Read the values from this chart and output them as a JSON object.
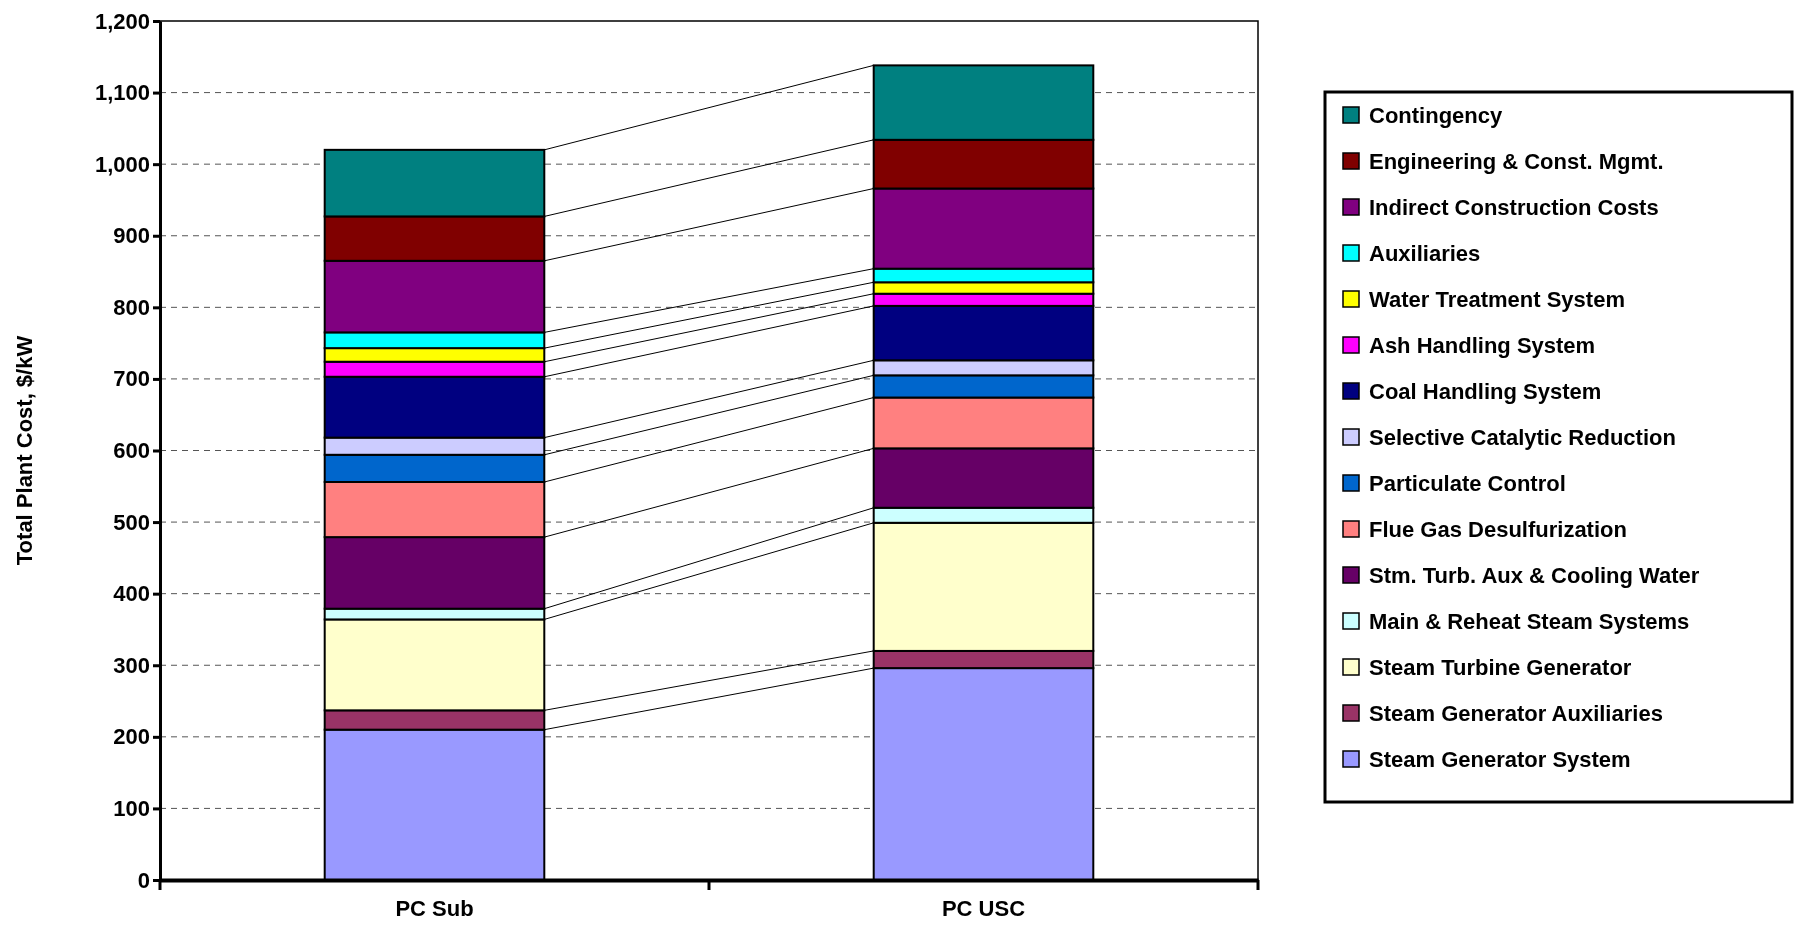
{
  "chart_data": {
    "type": "bar",
    "stacked": true,
    "ylabel": "Total Plant Cost, $/kW",
    "categories": [
      "PC Sub",
      "PC USC"
    ],
    "ylim": [
      0,
      1200
    ],
    "yticks": [
      0,
      100,
      200,
      300,
      400,
      500,
      600,
      700,
      800,
      900,
      {
        "value": 1000,
        "label": "1,000"
      },
      {
        "value": 1100,
        "label": "1,100"
      },
      {
        "value": 1200,
        "label": "1,200"
      }
    ],
    "grid": "y",
    "legend": "right",
    "series": [
      {
        "name": "Steam Generator System",
        "color": "#9999ff",
        "values": [
          210,
          296
        ]
      },
      {
        "name": "Steam Generator Auxiliaries",
        "color": "#993366",
        "values": [
          27,
          24
        ]
      },
      {
        "name": "Steam Turbine Generator",
        "color": "#ffffcc",
        "values": [
          127,
          179
        ]
      },
      {
        "name": "Main & Reheat Steam Systems",
        "color": "#ccffff",
        "values": [
          15,
          21
        ]
      },
      {
        "name": "Stm. Turb. Aux & Cooling Water",
        "color": "#660066",
        "values": [
          100,
          83
        ]
      },
      {
        "name": "Flue Gas Desulfurization",
        "color": "#ff8080",
        "values": [
          77,
          71
        ]
      },
      {
        "name": "Particulate Control",
        "color": "#0066cc",
        "values": [
          38,
          31
        ]
      },
      {
        "name": "Selective Catalytic Reduction",
        "color": "#ccccff",
        "values": [
          24,
          21
        ]
      },
      {
        "name": "Coal Handling System",
        "color": "#000080",
        "values": [
          85,
          76
        ]
      },
      {
        "name": "Ash Handling System",
        "color": "#ff00ff",
        "values": [
          21,
          17
        ]
      },
      {
        "name": "Water Treatment System",
        "color": "#ffff00",
        "values": [
          19,
          16
        ]
      },
      {
        "name": "Auxiliaries",
        "color": "#00ffff",
        "values": [
          22,
          19
        ]
      },
      {
        "name": "Indirect Construction Costs",
        "color": "#800080",
        "values": [
          100,
          112
        ]
      },
      {
        "name": "Engineering & Const. Mgmt.",
        "color": "#800000",
        "values": [
          62,
          68
        ]
      },
      {
        "name": "Contingency",
        "color": "#008080",
        "values": [
          93,
          104
        ]
      }
    ]
  }
}
